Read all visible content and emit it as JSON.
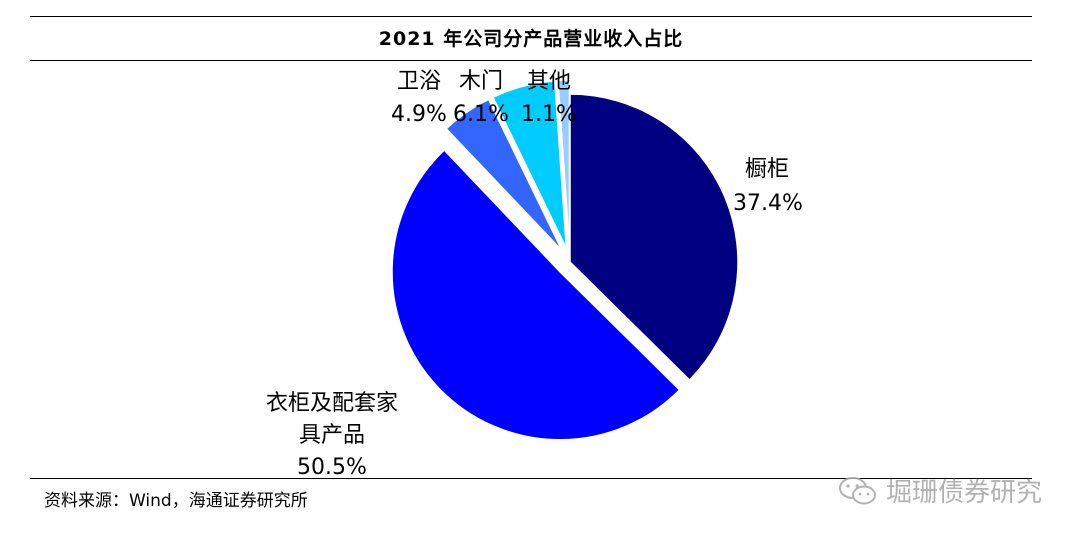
{
  "title": "2021 年公司分产品营业收入占比",
  "source": "资料来源：Wind，海通证券研究所",
  "watermark": {
    "text": "堀珊债券研究",
    "icon": "wechat-icon"
  },
  "chart_data": {
    "type": "pie",
    "title": "2021 年公司分产品营业收入占比",
    "slices": [
      {
        "name": "橱柜",
        "value": 37.4,
        "label": "37.4%",
        "color": "#000080",
        "exploded": false
      },
      {
        "name": "衣柜及配套家具产品",
        "value": 50.5,
        "label": "50.5%",
        "color": "#0000ff",
        "exploded": true
      },
      {
        "name": "卫浴",
        "value": 4.9,
        "label": "4.9%",
        "color": "#3366ff",
        "exploded": true
      },
      {
        "name": "木门",
        "value": 6.1,
        "label": "6.1%",
        "color": "#00ccff",
        "exploded": true
      },
      {
        "name": "其他",
        "value": 1.1,
        "label": "1.1%",
        "color": "#99ccff",
        "exploded": true
      }
    ],
    "legend": "none"
  }
}
